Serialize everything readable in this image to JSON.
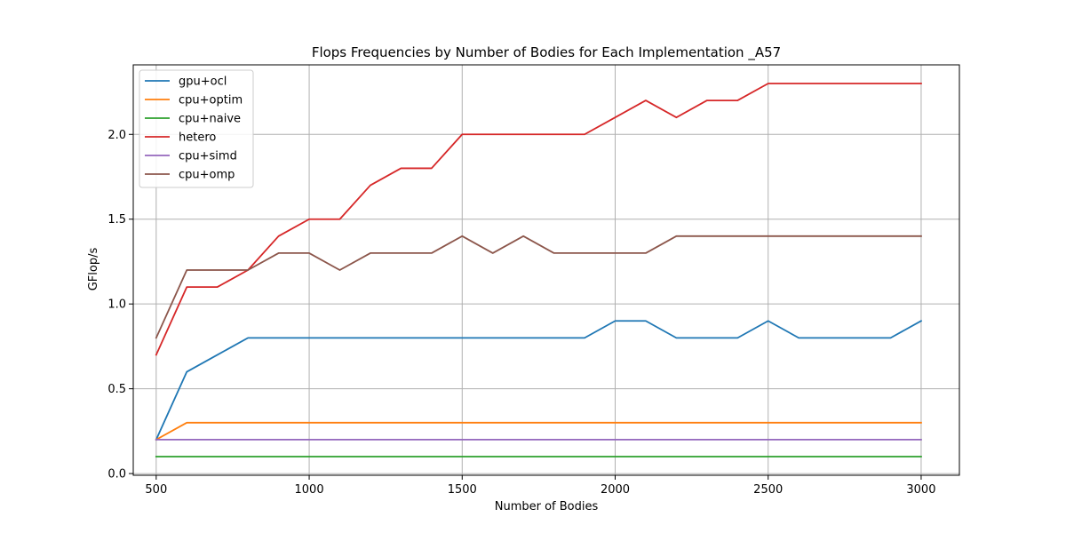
{
  "chart_data": {
    "type": "line",
    "title": "Flops Frequencies by Number of Bodies for Each Implementation _A57",
    "xlabel": "Number of Bodies",
    "ylabel": "GFlop/s",
    "xlim": [
      425,
      3125
    ],
    "ylim": [
      -0.01,
      2.41
    ],
    "xticks": [
      500,
      1000,
      1500,
      2000,
      2500,
      3000
    ],
    "yticks": [
      0.0,
      0.5,
      1.0,
      1.5,
      2.0
    ],
    "ytick_labels": [
      "0.0",
      "0.5",
      "1.0",
      "1.5",
      "2.0"
    ],
    "xtick_labels": [
      "500",
      "1000",
      "1500",
      "2000",
      "2500",
      "3000"
    ],
    "grid": true,
    "legend_position": "upper-left",
    "x": [
      500,
      600,
      700,
      800,
      900,
      1000,
      1100,
      1200,
      1300,
      1400,
      1500,
      1600,
      1700,
      1800,
      1900,
      2000,
      2100,
      2200,
      2300,
      2400,
      2500,
      2600,
      2700,
      2800,
      2900,
      3000
    ],
    "series": [
      {
        "name": "gpu+ocl",
        "color": "#1f77b4",
        "values": [
          0.2,
          0.6,
          0.7,
          0.8,
          0.8,
          0.8,
          0.8,
          0.8,
          0.8,
          0.8,
          0.8,
          0.8,
          0.8,
          0.8,
          0.8,
          0.9,
          0.9,
          0.8,
          0.8,
          0.8,
          0.9,
          0.8,
          0.8,
          0.8,
          0.8,
          0.9
        ]
      },
      {
        "name": "cpu+optim",
        "color": "#ff7f0e",
        "values": [
          0.2,
          0.3,
          0.3,
          0.3,
          0.3,
          0.3,
          0.3,
          0.3,
          0.3,
          0.3,
          0.3,
          0.3,
          0.3,
          0.3,
          0.3,
          0.3,
          0.3,
          0.3,
          0.3,
          0.3,
          0.3,
          0.3,
          0.3,
          0.3,
          0.3,
          0.3
        ]
      },
      {
        "name": "cpu+naive",
        "color": "#2ca02c",
        "values": [
          0.1,
          0.1,
          0.1,
          0.1,
          0.1,
          0.1,
          0.1,
          0.1,
          0.1,
          0.1,
          0.1,
          0.1,
          0.1,
          0.1,
          0.1,
          0.1,
          0.1,
          0.1,
          0.1,
          0.1,
          0.1,
          0.1,
          0.1,
          0.1,
          0.1,
          0.1
        ]
      },
      {
        "name": "hetero",
        "color": "#d62728",
        "values": [
          0.7,
          1.1,
          1.1,
          1.2,
          1.4,
          1.5,
          1.5,
          1.7,
          1.8,
          1.8,
          2.0,
          2.0,
          2.0,
          2.0,
          2.0,
          2.1,
          2.2,
          2.1,
          2.2,
          2.2,
          2.3,
          2.3,
          2.3,
          2.3,
          2.3,
          2.3
        ]
      },
      {
        "name": "cpu+simd",
        "color": "#9467bd",
        "values": [
          0.2,
          0.2,
          0.2,
          0.2,
          0.2,
          0.2,
          0.2,
          0.2,
          0.2,
          0.2,
          0.2,
          0.2,
          0.2,
          0.2,
          0.2,
          0.2,
          0.2,
          0.2,
          0.2,
          0.2,
          0.2,
          0.2,
          0.2,
          0.2,
          0.2,
          0.2
        ]
      },
      {
        "name": "cpu+omp",
        "color": "#8c564b",
        "values": [
          0.8,
          1.2,
          1.2,
          1.2,
          1.3,
          1.3,
          1.2,
          1.3,
          1.3,
          1.3,
          1.4,
          1.3,
          1.4,
          1.3,
          1.3,
          1.3,
          1.3,
          1.4,
          1.4,
          1.4,
          1.4,
          1.4,
          1.4,
          1.4,
          1.4,
          1.4
        ]
      }
    ]
  }
}
